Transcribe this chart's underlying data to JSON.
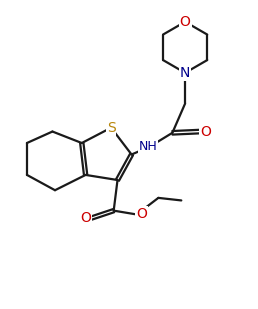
{
  "line_color": "#1a1a1a",
  "bg_color": "#ffffff",
  "atom_colors": {
    "S": "#b8860b",
    "N": "#00008b",
    "O": "#cc0000",
    "C": "#1a1a1a"
  },
  "line_width": 1.6,
  "font_size_atom": 10,
  "fig_width": 2.58,
  "fig_height": 3.09,
  "dpi": 100,
  "xlim": [
    0,
    10
  ],
  "ylim": [
    0,
    12
  ]
}
